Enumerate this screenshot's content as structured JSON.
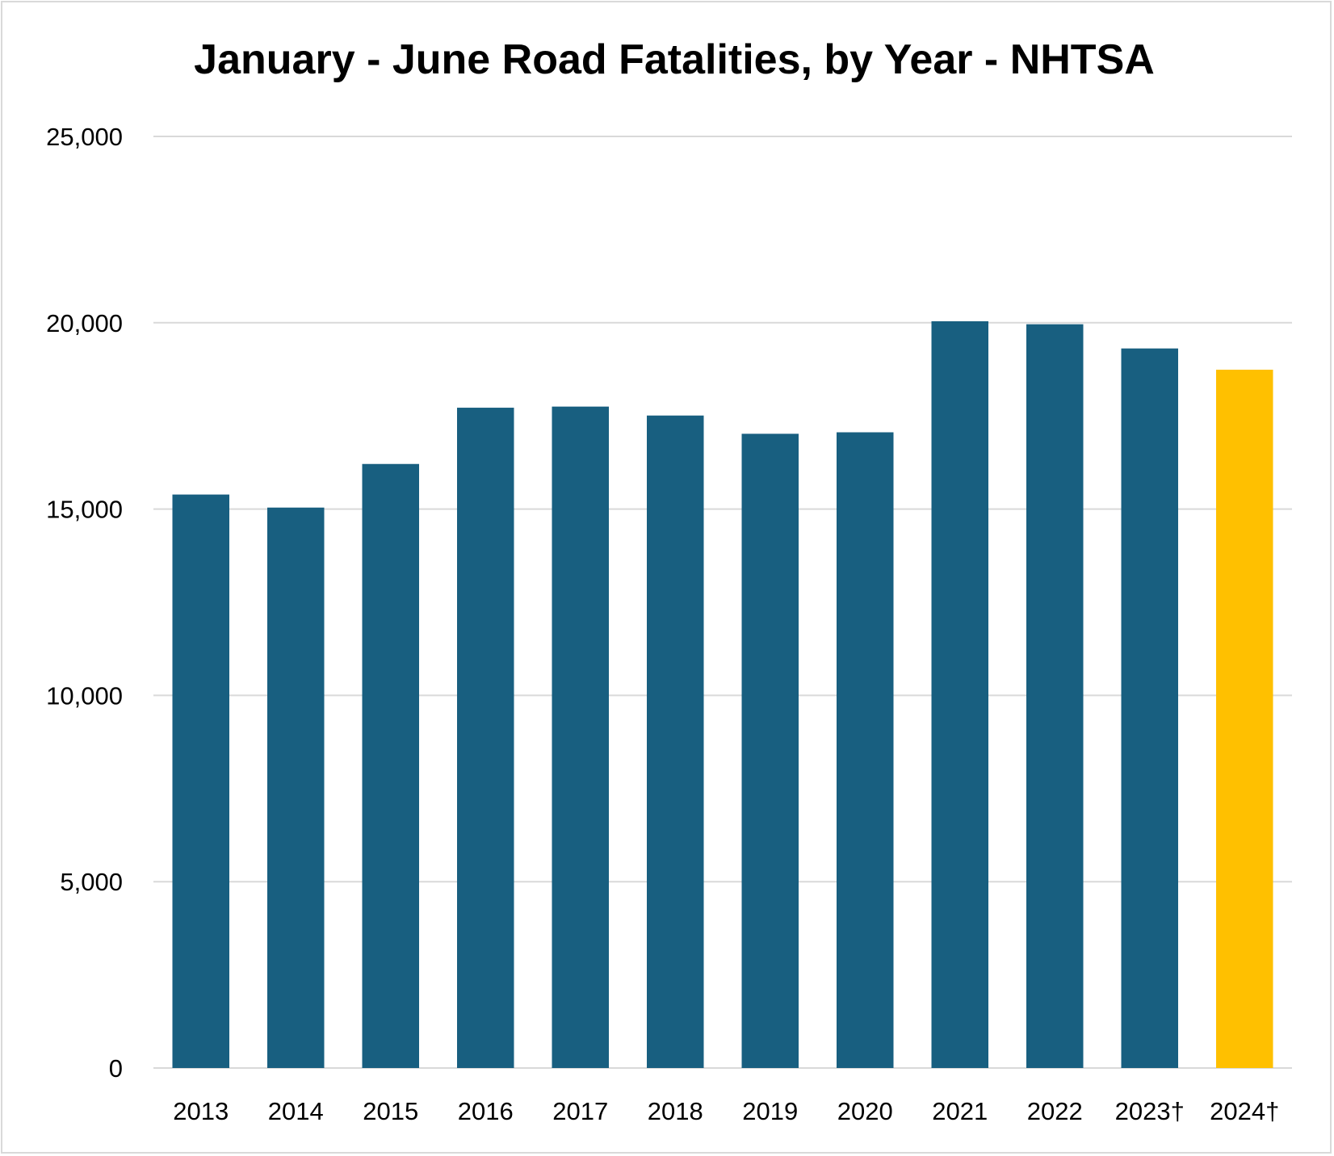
{
  "chart_data": {
    "type": "bar",
    "title": "January - June Road Fatalities, by Year - NHTSA",
    "xlabel": "",
    "ylabel": "",
    "categories": [
      "2013",
      "2014",
      "2015",
      "2016",
      "2017",
      "2018",
      "2019",
      "2020",
      "2021",
      "2022",
      "2023†",
      "2024†"
    ],
    "values": [
      15390,
      15040,
      16210,
      17720,
      17750,
      17510,
      17020,
      17060,
      20040,
      19960,
      19310,
      18740
    ],
    "highlight_index": 11,
    "ylim": [
      0,
      25000
    ],
    "yticks": [
      "0",
      "5,000",
      "10,000",
      "15,000",
      "20,000",
      "25,000"
    ],
    "ytick_values": [
      0,
      5000,
      10000,
      15000,
      20000,
      25000
    ],
    "grid": true,
    "legend": "none",
    "colors": {
      "bar": "#185f80",
      "highlight": "#ffc000",
      "grid": "#d9d9d9"
    }
  }
}
